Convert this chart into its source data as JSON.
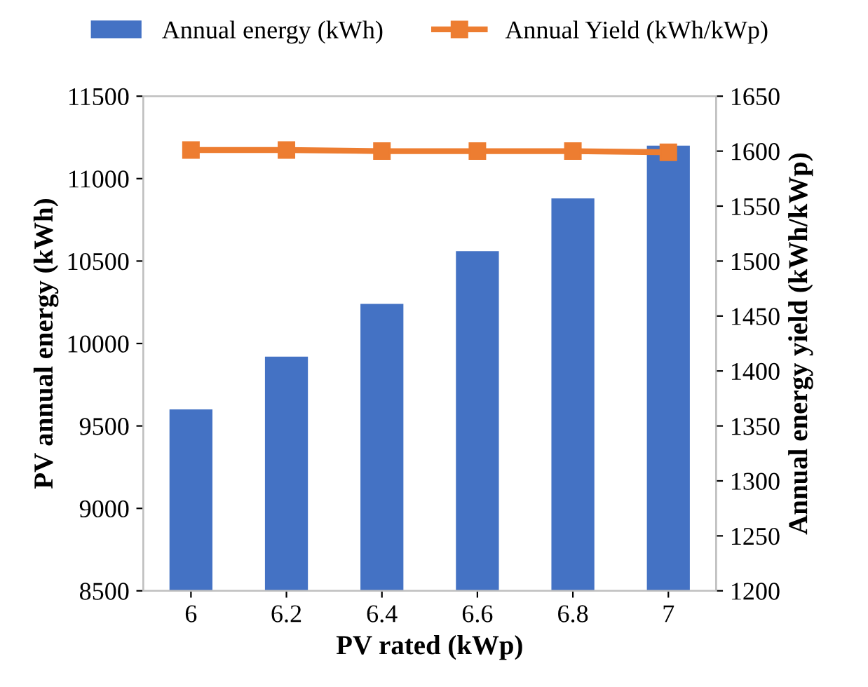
{
  "chart_data": {
    "type": "bar",
    "xlabel": "PV rated (kWp)",
    "ylabel": "PV annual energy (kWh)",
    "y2label": "Annual energy yield (kWh/kWp)",
    "categories": [
      "6",
      "6.2",
      "6.4",
      "6.6",
      "6.8",
      "7"
    ],
    "series": [
      {
        "name": "Annual energy (kWh)",
        "color": "#4472c4",
        "values": [
          9600,
          9920,
          10240,
          10560,
          10880,
          11200
        ]
      },
      {
        "name": "Annual Yield (kWh/kWp)",
        "type": "line",
        "axis": "y2",
        "color": "#ed7d31",
        "marker": "square",
        "values": [
          1601,
          1601,
          1600,
          1600,
          1600,
          1599
        ]
      }
    ],
    "ylim": [
      8500,
      11500
    ],
    "yticks": [
      8500,
      9000,
      9500,
      10000,
      10500,
      11000,
      11500
    ],
    "y2lim": [
      1200,
      1650
    ],
    "y2ticks": [
      1200,
      1250,
      1300,
      1350,
      1400,
      1450,
      1500,
      1550,
      1600,
      1650
    ],
    "legend": "top",
    "grid": false
  }
}
